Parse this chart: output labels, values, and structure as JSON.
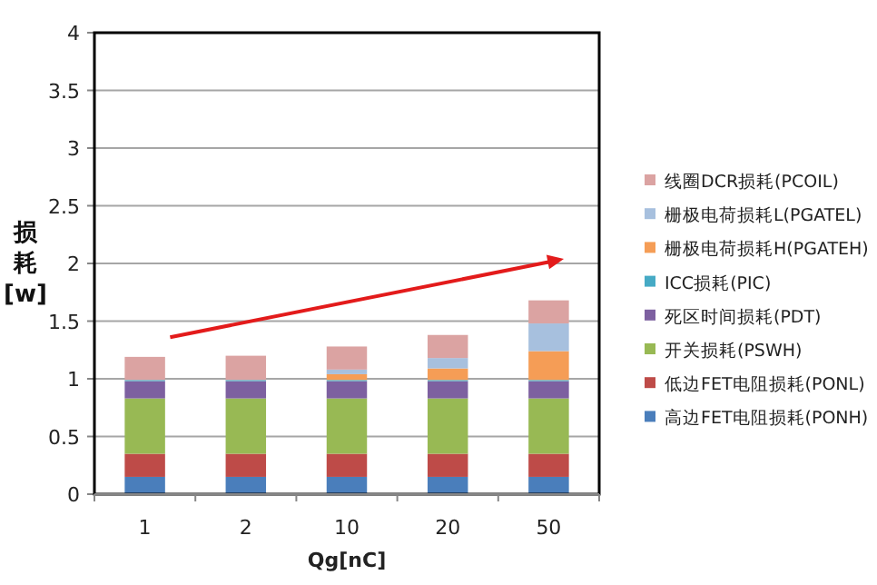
{
  "chart_data": {
    "type": "bar",
    "stacked": true,
    "xlabel": "Qg[nC]",
    "ylabel": "损耗[w]",
    "categories": [
      "1",
      "2",
      "10",
      "20",
      "50"
    ],
    "ylim": [
      0,
      4
    ],
    "yticks": [
      0,
      0.5,
      1,
      1.5,
      2,
      2.5,
      3,
      3.5,
      4
    ],
    "grid": "y",
    "legend": "right",
    "series": [
      {
        "name": "高边FET电阻损耗(PONH)",
        "color": "#4a7ebb",
        "values": [
          0.15,
          0.15,
          0.15,
          0.15,
          0.15
        ]
      },
      {
        "name": "低边FET电阻损耗(PONL)",
        "color": "#be4b48",
        "values": [
          0.2,
          0.2,
          0.2,
          0.2,
          0.2
        ]
      },
      {
        "name": "开关损耗(PSWH)",
        "color": "#98b954",
        "values": [
          0.48,
          0.48,
          0.48,
          0.48,
          0.48
        ]
      },
      {
        "name": "死区时间损耗(PDT)",
        "color": "#7d60a0",
        "values": [
          0.15,
          0.15,
          0.15,
          0.15,
          0.15
        ]
      },
      {
        "name": "ICC损耗(PIC)",
        "color": "#46aac5",
        "values": [
          0.01,
          0.01,
          0.01,
          0.01,
          0.01
        ]
      },
      {
        "name": "栅极电荷损耗H(PGATEH)",
        "color": "#f59d56",
        "values": [
          0,
          0,
          0.05,
          0.1,
          0.25
        ]
      },
      {
        "name": "栅极电荷损耗L(PGATEL)",
        "color": "#a7c0de",
        "values": [
          0,
          0,
          0.04,
          0.09,
          0.24
        ]
      },
      {
        "name": "线圈DCR损耗(PCOIL)",
        "color": "#dba3a2",
        "values": [
          0.2,
          0.21,
          0.2,
          0.2,
          0.2
        ]
      }
    ]
  }
}
